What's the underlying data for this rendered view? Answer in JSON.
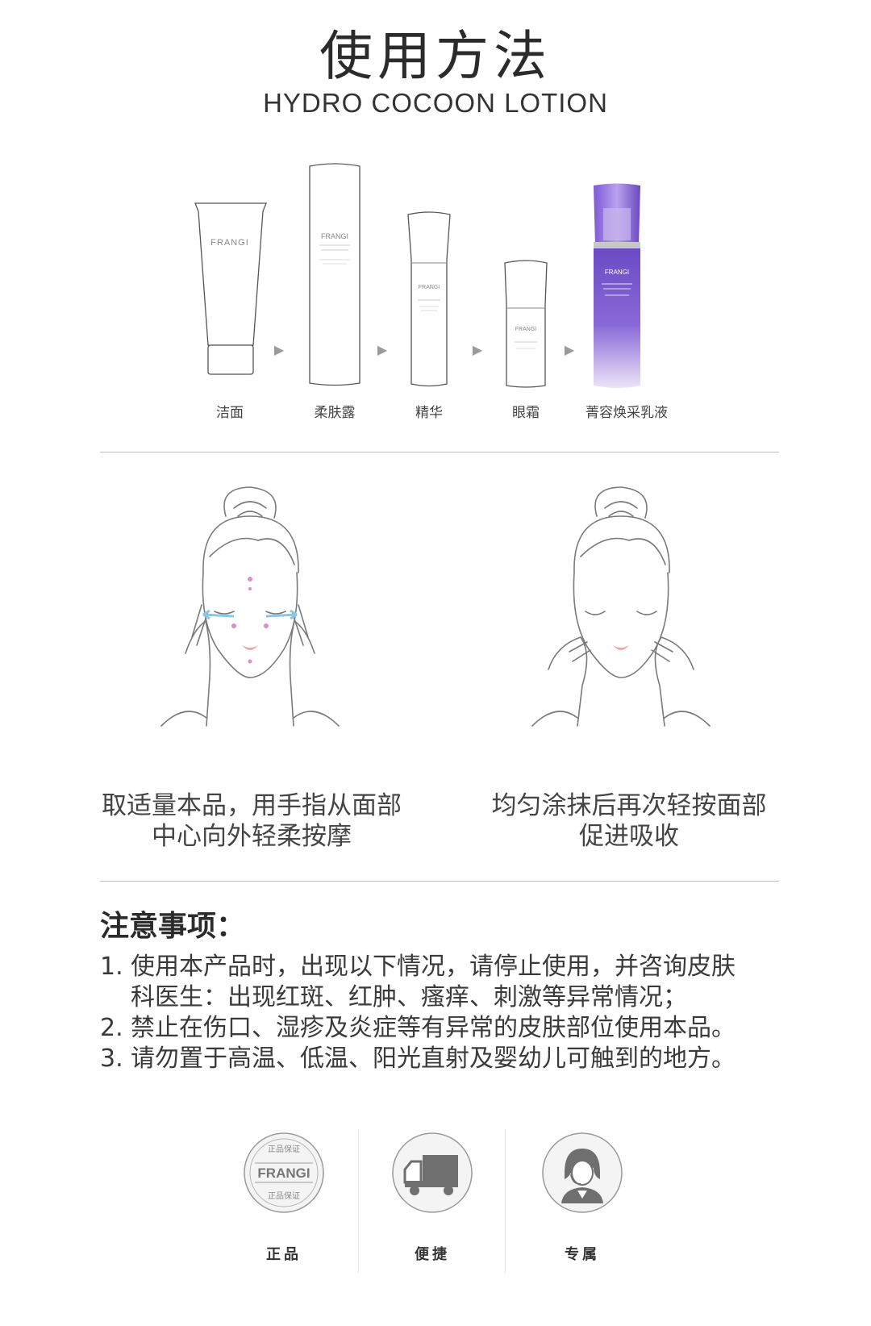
{
  "header": {
    "title": "使用方法",
    "subtitle": "HYDRO COCOON LOTION"
  },
  "steps": [
    {
      "label": "洁面",
      "brand": "FRANGI"
    },
    {
      "label": "柔肤露",
      "brand": "FRANGI"
    },
    {
      "label": "精华",
      "brand": "FRANGI"
    },
    {
      "label": "眼霜",
      "brand": "FRANGI"
    },
    {
      "label": "菁容焕采乳液",
      "brand": "FRANGI"
    }
  ],
  "arrow_glyph": "▶",
  "instructions": {
    "left": {
      "line1": "取适量本品，用手指从面部",
      "line2": "中心向外轻柔按摩"
    },
    "right": {
      "line1": "均匀涂抹后再次轻按面部",
      "line2": "促进吸收"
    }
  },
  "notes": {
    "title": "注意事项：",
    "items": [
      {
        "num": "1.",
        "line1": "使用本产品时，出现以下情况，请停止使用，并咨询皮肤",
        "line2": "科医生：出现红斑、红肿、瘙痒、刺激等异常情况；"
      },
      {
        "num": "2.",
        "line1": "禁止在伤口、湿疹及炎症等有异常的皮肤部位使用本品。"
      },
      {
        "num": "3.",
        "line1": "请勿置于高温、低温、阳光直射及婴幼儿可触到的地方。"
      }
    ]
  },
  "badges": [
    {
      "label": "正品",
      "icon": "authentic-seal-icon",
      "seal_text": "正品保证",
      "brand": "FRANGI"
    },
    {
      "label": "便捷",
      "icon": "delivery-truck-icon"
    },
    {
      "label": "专属",
      "icon": "customer-service-icon"
    }
  ],
  "colors": {
    "accent_purple": "#6a4bc4",
    "light_purple": "#c9b6ee",
    "line_gray": "#bdbdbd",
    "sketch_gray": "#7a7a7a",
    "eye_arrow_blue": "#8cc6e0",
    "dot_pink": "#d98fc8"
  }
}
